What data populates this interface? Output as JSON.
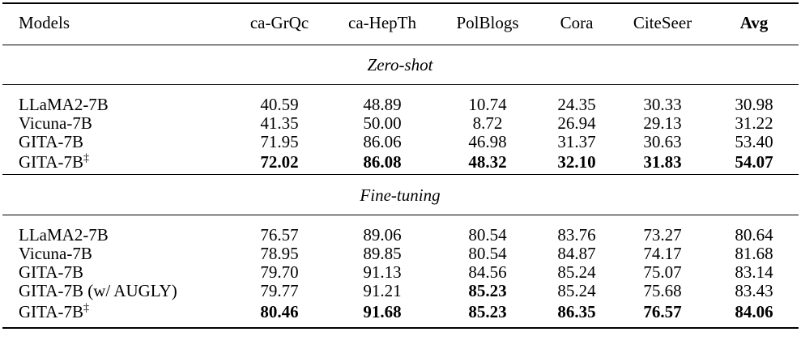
{
  "table": {
    "header": [
      "Models",
      "ca-GrQc",
      "ca-HepTh",
      "PolBlogs",
      "Cora",
      "CiteSeer",
      "Avg"
    ],
    "header_bold": [
      6
    ],
    "sections": [
      {
        "title": "Zero-shot",
        "rows": [
          {
            "model": "LLaMA2-7B",
            "values": [
              "40.59",
              "48.89",
              "10.74",
              "24.35",
              "30.33",
              "30.98"
            ],
            "bold": []
          },
          {
            "model": "Vicuna-7B",
            "values": [
              "41.35",
              "50.00",
              "8.72",
              "26.94",
              "29.13",
              "31.22"
            ],
            "bold": []
          },
          {
            "model": "GITA-7B",
            "values": [
              "71.95",
              "86.06",
              "46.98",
              "31.37",
              "30.63",
              "53.40"
            ],
            "bold": []
          },
          {
            "model": "GITA-7B",
            "sup": "‡",
            "values": [
              "72.02",
              "86.08",
              "48.32",
              "32.10",
              "31.83",
              "54.07"
            ],
            "bold": [
              0,
              1,
              2,
              3,
              4,
              5
            ]
          }
        ]
      },
      {
        "title": "Fine-tuning",
        "rows": [
          {
            "model": "LLaMA2-7B",
            "values": [
              "76.57",
              "89.06",
              "80.54",
              "83.76",
              "73.27",
              "80.64"
            ],
            "bold": []
          },
          {
            "model": "Vicuna-7B",
            "values": [
              "78.95",
              "89.85",
              "80.54",
              "84.87",
              "74.17",
              "81.68"
            ],
            "bold": []
          },
          {
            "model": "GITA-7B",
            "values": [
              "79.70",
              "91.13",
              "84.56",
              "85.24",
              "75.07",
              "83.14"
            ],
            "bold": []
          },
          {
            "model": "GITA-7B (w/ AUGLY)",
            "values": [
              "79.77",
              "91.21",
              "85.23",
              "85.24",
              "75.68",
              "83.43"
            ],
            "bold": [
              2
            ]
          },
          {
            "model": "GITA-7B",
            "sup": "‡",
            "values": [
              "80.46",
              "91.68",
              "85.23",
              "86.35",
              "76.57",
              "84.06"
            ],
            "bold": [
              0,
              1,
              2,
              3,
              4,
              5
            ]
          }
        ]
      }
    ]
  }
}
